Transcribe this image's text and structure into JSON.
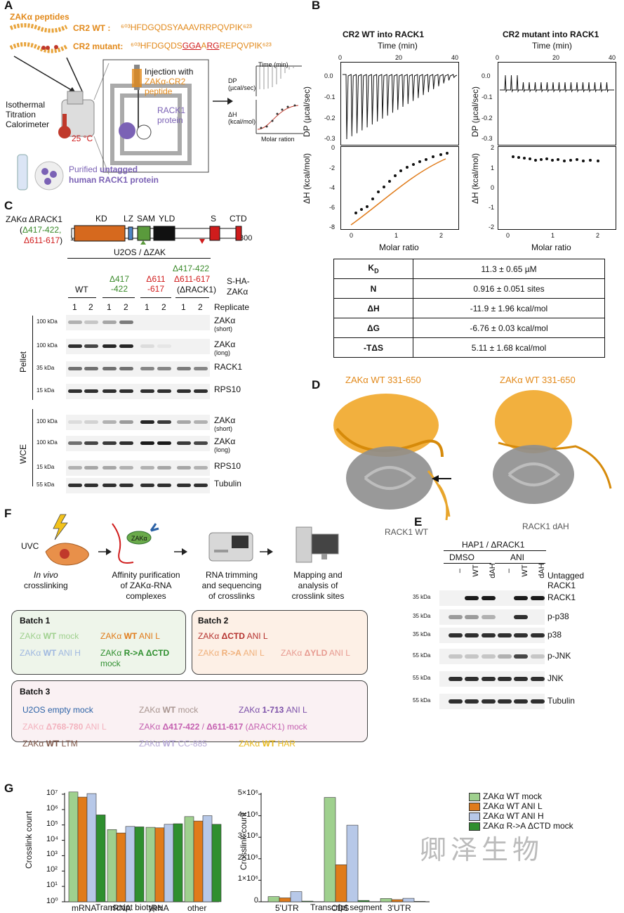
{
  "panels": {
    "A": "A",
    "B": "B",
    "C": "C",
    "D": "D",
    "E": "E",
    "F": "F",
    "G": "G"
  },
  "panelA": {
    "peptides_title": "ZAKα peptides",
    "wt_label": "CR2 WT :",
    "wt_seq": "⁶⁰³HFDGQDSYAAAVRRPQVPIK⁶²³",
    "mut_label": "CR2 mutant:",
    "mut_seq_pre": "⁶⁰³HFDGQDS",
    "mut_seq_gga": "GGA",
    "mut_seq_a": "A",
    "mut_seq_rg": "RG",
    "mut_seq_post": "REPQVPIK⁶²³",
    "itc_label": "Isothermal Titration Calorimeter",
    "temp": "25 °C",
    "injection": "Injection with",
    "injection2": "ZAKα-CR2 peptide",
    "rack1": "RACK1 protein",
    "purified": "Purified",
    "untagged": "untagged",
    "human_rack1": "human RACK1 protein",
    "mini_time": "Time (min)",
    "mini_dp": "DP (µcal/sec)",
    "mini_dh": "ΔH (kcal/mol)",
    "mini_molar": "Molar ration"
  },
  "panelB": {
    "wt_title": "CR2 WT into RACK1",
    "mut_title": "CR2 mutant into RACK1",
    "time_label": "Time (min)",
    "time_ticks": [
      "0",
      "20",
      "40"
    ],
    "dp_label": "DP (µcal/sec)",
    "dh_label": "ΔH (kcal/mol)",
    "molar_label": "Molar ratio",
    "wt_dp_ticks": [
      "0.0",
      "-0.1",
      "-0.2",
      "-0.3"
    ],
    "mut_dp_ticks": [
      "0.0",
      "-0.1",
      "-0.2",
      "-0.3"
    ],
    "wt_dh_ticks": [
      "0",
      "-2",
      "-4",
      "-6",
      "-8"
    ],
    "mut_dh_ticks": [
      "2",
      "1",
      "0",
      "-1",
      "-2"
    ],
    "molar_ticks": [
      "0",
      "1",
      "2"
    ],
    "table": [
      {
        "param": "K",
        "sub": "D",
        "value": "11.3 ± 0.65 µM"
      },
      {
        "param": "N",
        "sub": "",
        "value": "0.916 ± 0.051 sites"
      },
      {
        "param": "ΔH",
        "sub": "",
        "value": "-11.9 ± 1.96 kcal/mol"
      },
      {
        "param": "ΔG",
        "sub": "",
        "value": "-6.76 ± 0.03 kcal/mol"
      },
      {
        "param": "-TΔS",
        "sub": "",
        "value": "5.11 ± 1.68 kcal/mol"
      }
    ]
  },
  "panelC": {
    "construct_label": "ZAKα ΔRACK1",
    "del1": "Δ417-422,",
    "del2": "Δ611-617",
    "start": "1",
    "end": "800",
    "domains": [
      "KD",
      "LZ",
      "SAM",
      "YLD",
      "S",
      "CTD"
    ],
    "cell_line": "U2OS / ΔZAK",
    "groups": [
      {
        "name": "WT",
        "color": "#111111"
      },
      {
        "name": "Δ417\n-422",
        "color": "#3a8a2a"
      },
      {
        "name": "Δ611\n-617",
        "color": "#d01c1c"
      },
      {
        "name": "Δ417-422",
        "color": "#3a8a2a"
      }
    ],
    "group4_line2": "Δ611-617",
    "group4_line3": "(ΔRACK1)",
    "sha": "S-HA-",
    "sha2": "ZAKα",
    "replicate": "Replicate",
    "replicates": [
      "1",
      "2",
      "1",
      "2",
      "1",
      "2",
      "1",
      "2"
    ],
    "pellet": "Pellet",
    "wce": "WCE",
    "pellet_rows": [
      {
        "kda": "100 kDa",
        "label": "ZAKα",
        "sub": "(short)"
      },
      {
        "kda": "100 kDa",
        "label": "ZAKα",
        "sub": "(long)"
      },
      {
        "kda": "35 kDa",
        "label": "RACK1",
        "sub": ""
      },
      {
        "kda": "15 kDa",
        "label": "RPS10",
        "sub": ""
      }
    ],
    "wce_rows": [
      {
        "kda": "100 kDa",
        "label": "ZAKα",
        "sub": "(short)"
      },
      {
        "kda": "100 kDa",
        "label": "ZAKα",
        "sub": "(long)"
      },
      {
        "kda": "15 kDa",
        "label": "RPS10",
        "sub": ""
      },
      {
        "kda": "55 kDa",
        "label": "Tubulin",
        "sub": ""
      }
    ]
  },
  "panelD": {
    "left_title": "ZAKα WT 331-650",
    "right_title": "ZAKα WT 331-650",
    "left_label": "RACK1 WT",
    "right_label": "RACK1 dAH"
  },
  "panelE": {
    "cell_line": "HAP1 / ΔRACK1",
    "dmso": "DMSO",
    "ani": "ANI",
    "lanes": [
      "–",
      "WT",
      "dAH",
      "–",
      "WT",
      "dAH"
    ],
    "untagged": "Untagged",
    "rack1": "RACK1",
    "rows": [
      {
        "kda": "35 kDa",
        "label": "RACK1"
      },
      {
        "kda": "35 kDa",
        "label": "p-p38"
      },
      {
        "kda": "35 kDa",
        "label": "p38"
      },
      {
        "kda": "55 kDa",
        "label": "p-JNK"
      },
      {
        "kda": "55 kDa",
        "label": "JNK"
      },
      {
        "kda": "55 kDa",
        "label": "Tubulin"
      }
    ]
  },
  "panelF": {
    "uvc": "UVC",
    "step1a": "In vivo",
    "step1b": "crosslinking",
    "zak": "ZAKα",
    "step2a": "Affinity purification",
    "step2b": "of ZAKα-RNA",
    "step2c": "complexes",
    "step3a": "RNA trimming",
    "step3b": "and sequencing",
    "step3c": "of crosslinks",
    "step4a": "Mapping and",
    "step4b": "analysis of",
    "step4c": "crosslink sites",
    "batch1": "Batch 1",
    "batch2": "Batch 2",
    "batch3": "Batch 3",
    "b1_items": [
      {
        "pre": "ZAKα ",
        "bold": "WT",
        "post": " mock",
        "color": "#9fd08e"
      },
      {
        "pre": "ZAKα ",
        "bold": "WT",
        "post": " ANI L",
        "color": "#e07b1a"
      },
      {
        "pre": "ZAKα ",
        "bold": "WT",
        "post": " ANI H",
        "color": "#9fb8e0"
      },
      {
        "pre": "ZAKα ",
        "bold": "R->A ΔCTD",
        "post": "",
        "color": "#2f8f2f"
      }
    ],
    "b1_mock": "mock",
    "b2_items": [
      {
        "pre": "ZAKα ",
        "bold": "ΔCTD",
        "post": " ANI L",
        "color": "#b5322f"
      },
      {
        "pre": "ZAKα ",
        "bold": "R->A",
        "post": " ANI L",
        "color": "#f0b07a"
      },
      {
        "pre": "ZAKα ",
        "bold": "ΔYLD",
        "post": " ANI L",
        "color": "#e79a90"
      }
    ],
    "b3_items": [
      {
        "pre": "U2OS empty mock",
        "bold": "",
        "post": "",
        "color": "#2c62a6"
      },
      {
        "pre": "ZAKα ",
        "bold": "WT",
        "post": " mock",
        "color": "#a89590"
      },
      {
        "pre": "ZAKα ",
        "bold": "1-713",
        "post": " ANI L",
        "color": "#7b4fa8"
      },
      {
        "pre": "ZAKα ",
        "bold": "Δ768-780",
        "post": " ANI L",
        "color": "#f3b2be"
      },
      {
        "pre": "ZAKα ",
        "bold": "Δ417-422",
        "post": " / ",
        "color": "#c45fb0"
      },
      {
        "pre": "ZAKα ",
        "bold": "WT",
        "post": " LTM",
        "color": "#7d5547"
      },
      {
        "pre": "ZAKα ",
        "bold": "WT",
        "post": " CC-885",
        "color": "#b6a8d6"
      },
      {
        "pre": "ZAKα ",
        "bold": "WT",
        "post": " HAR",
        "color": "#e8b81a"
      }
    ],
    "b3_item5_bold2": "Δ611-617",
    "b3_item5_post2": " (ΔRACK1) mock"
  },
  "chart_data": [
    {
      "type": "bar",
      "title": "",
      "xlabel": "Transcript biotype",
      "ylabel": "Crosslink count",
      "yscale": "log",
      "ylim": [
        1,
        10000000
      ],
      "y_ticks": [
        "10⁰",
        "10¹",
        "10²",
        "10³",
        "10⁴",
        "10⁵",
        "10⁶",
        "10⁷"
      ],
      "categories": [
        "mRNA",
        "rRNA",
        "tRNA",
        "other"
      ],
      "series": [
        {
          "name": "ZAKα WT mock",
          "color": "#9fd08e",
          "values": [
            14000000,
            50000,
            70000,
            350000
          ]
        },
        {
          "name": "ZAKα WT ANI L",
          "color": "#e07b1a",
          "values": [
            6500000,
            30000,
            65000,
            180000
          ]
        },
        {
          "name": "ZAKα WT ANI H",
          "color": "#b7c8e8",
          "values": [
            11000000,
            80000,
            110000,
            400000
          ]
        },
        {
          "name": "ZAKα R->A ΔCTD mock",
          "color": "#2f8f2f",
          "values": [
            450000,
            75000,
            120000,
            110000
          ]
        }
      ]
    },
    {
      "type": "bar",
      "title": "",
      "xlabel": "Transcript segment",
      "ylabel": "Crosslink count",
      "ylim": [
        0,
        5000000
      ],
      "y_ticks": [
        "0",
        "1×10⁶",
        "2×10⁶",
        "3×10⁶",
        "4×10⁶",
        "5×10⁶"
      ],
      "categories": [
        "5'UTR",
        "CDS",
        "3'UTR"
      ],
      "legend_position": "top-right",
      "series": [
        {
          "name": "ZAKα WT mock",
          "color": "#9fd08e",
          "values": [
            240000,
            4850000,
            150000
          ]
        },
        {
          "name": "ZAKα WT ANI L",
          "color": "#e07b1a",
          "values": [
            180000,
            1720000,
            100000
          ]
        },
        {
          "name": "ZAKα WT ANI H",
          "color": "#b7c8e8",
          "values": [
            470000,
            3560000,
            160000
          ]
        },
        {
          "name": "ZAKα R->A ΔCTD mock",
          "color": "#2f8f2f",
          "values": [
            30000,
            60000,
            20000
          ]
        }
      ]
    }
  ],
  "watermark": "卿泽生物"
}
